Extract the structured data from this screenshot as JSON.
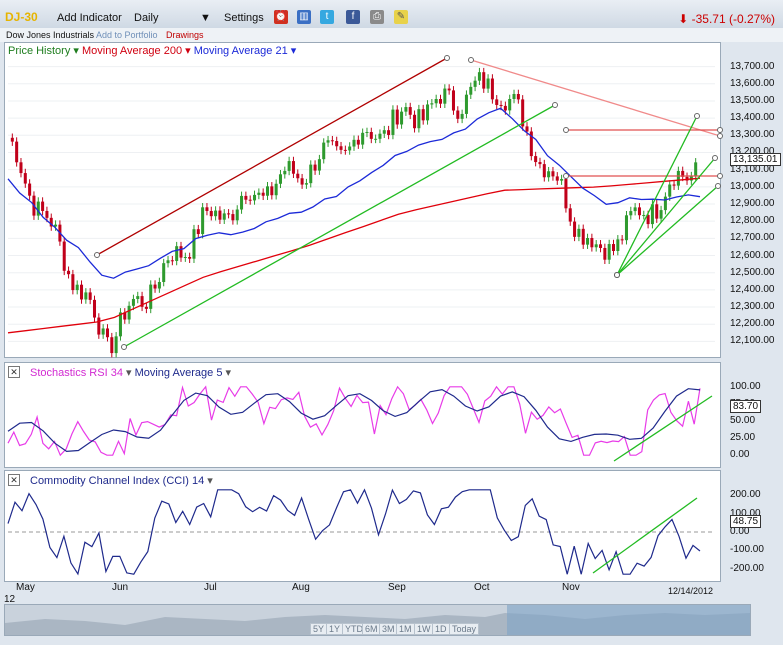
{
  "toolbar": {
    "symbol": "DJ-30",
    "add_indicator": "Add Indicator",
    "interval": "Daily",
    "settings": "Settings",
    "change": "-35.71 (-0.27%)"
  },
  "subbar": {
    "name": "Dow Jones Industrials",
    "add_to_portfolio": "Add to Portfolio",
    "drawings": "Drawings"
  },
  "price_panel": {
    "legend": [
      "Price History",
      "Moving Average 200",
      "Moving Average 21"
    ],
    "last_value": "13,135.01",
    "y_ticks": [
      "13,700.00",
      "13,600.00",
      "13,500.00",
      "13,400.00",
      "13,300.00",
      "13,200.00",
      "13,100.00",
      "13,000.00",
      "12,900.00",
      "12,800.00",
      "12,700.00",
      "12,600.00",
      "12,500.00",
      "12,400.00",
      "12,300.00",
      "12,200.00",
      "12,100.00"
    ]
  },
  "stoch_panel": {
    "legend": [
      "Stochastics RSI 34",
      "Moving Average 5"
    ],
    "last_value": "83.70",
    "y_ticks": [
      "100.00",
      "75.00",
      "50.00",
      "25.00",
      "0.00"
    ]
  },
  "cci_panel": {
    "legend": [
      "Commodity Channel Index (CCI) 14"
    ],
    "last_value": "48.75",
    "y_ticks": [
      "200.00",
      "100.00",
      "0.00",
      "-100.00",
      "-200.00"
    ]
  },
  "x_axis": {
    "months": [
      "May",
      "Jun",
      "Jul",
      "Aug",
      "Sep",
      "Oct",
      "Nov"
    ],
    "end_date": "12/14/2012",
    "year_label": "12"
  },
  "navigator": {
    "buttons": [
      "5Y",
      "1Y",
      "YTD",
      "6M",
      "3M",
      "1M",
      "1W",
      "1D",
      "Today"
    ]
  },
  "colors": {
    "up": "#2e9a2e",
    "down": "#c0001a",
    "ma200": "#e0000b",
    "ma21": "#1c2ad8",
    "stoch": "#e83ce8",
    "stoch_ma": "#1f2a8c",
    "cci": "#1f2a8c",
    "trend_green": "#22bb22",
    "trend_red": "#b00000",
    "trend_pink": "#f08a8a"
  },
  "chart_data": [
    {
      "type": "line",
      "title": "Dow Jones Industrials",
      "x": [
        "May",
        "Jun",
        "Jul",
        "Aug",
        "Sep",
        "Oct",
        "Nov",
        "12/14/2012"
      ],
      "series": [
        {
          "name": "Price History",
          "values": [
            13250,
            12100,
            12800,
            13100,
            13400,
            13600,
            12600,
            13135
          ]
        },
        {
          "name": "Moving Average 200",
          "values": [
            12150,
            12220,
            12480,
            12650,
            12850,
            12980,
            13000,
            13050
          ]
        },
        {
          "name": "Moving Average 21",
          "values": [
            13050,
            12450,
            12700,
            12850,
            13200,
            13450,
            12900,
            12950
          ]
        }
      ],
      "ylim": [
        12050,
        13750
      ]
    },
    {
      "type": "line",
      "series": [
        {
          "name": "Stochastics RSI 34",
          "values": [
            30,
            10,
            90,
            60,
            80,
            90,
            5,
            83.7
          ]
        },
        {
          "name": "Moving Average 5",
          "values": [
            35,
            15,
            80,
            70,
            75,
            85,
            10,
            90
          ]
        }
      ],
      "ylim": [
        -10,
        110
      ]
    },
    {
      "type": "line",
      "series": [
        {
          "name": "Commodity Channel Index (CCI) 14",
          "values": [
            150,
            -200,
            150,
            100,
            180,
            150,
            -200,
            48.75
          ]
        }
      ],
      "ylim": [
        -240,
        240
      ]
    }
  ]
}
